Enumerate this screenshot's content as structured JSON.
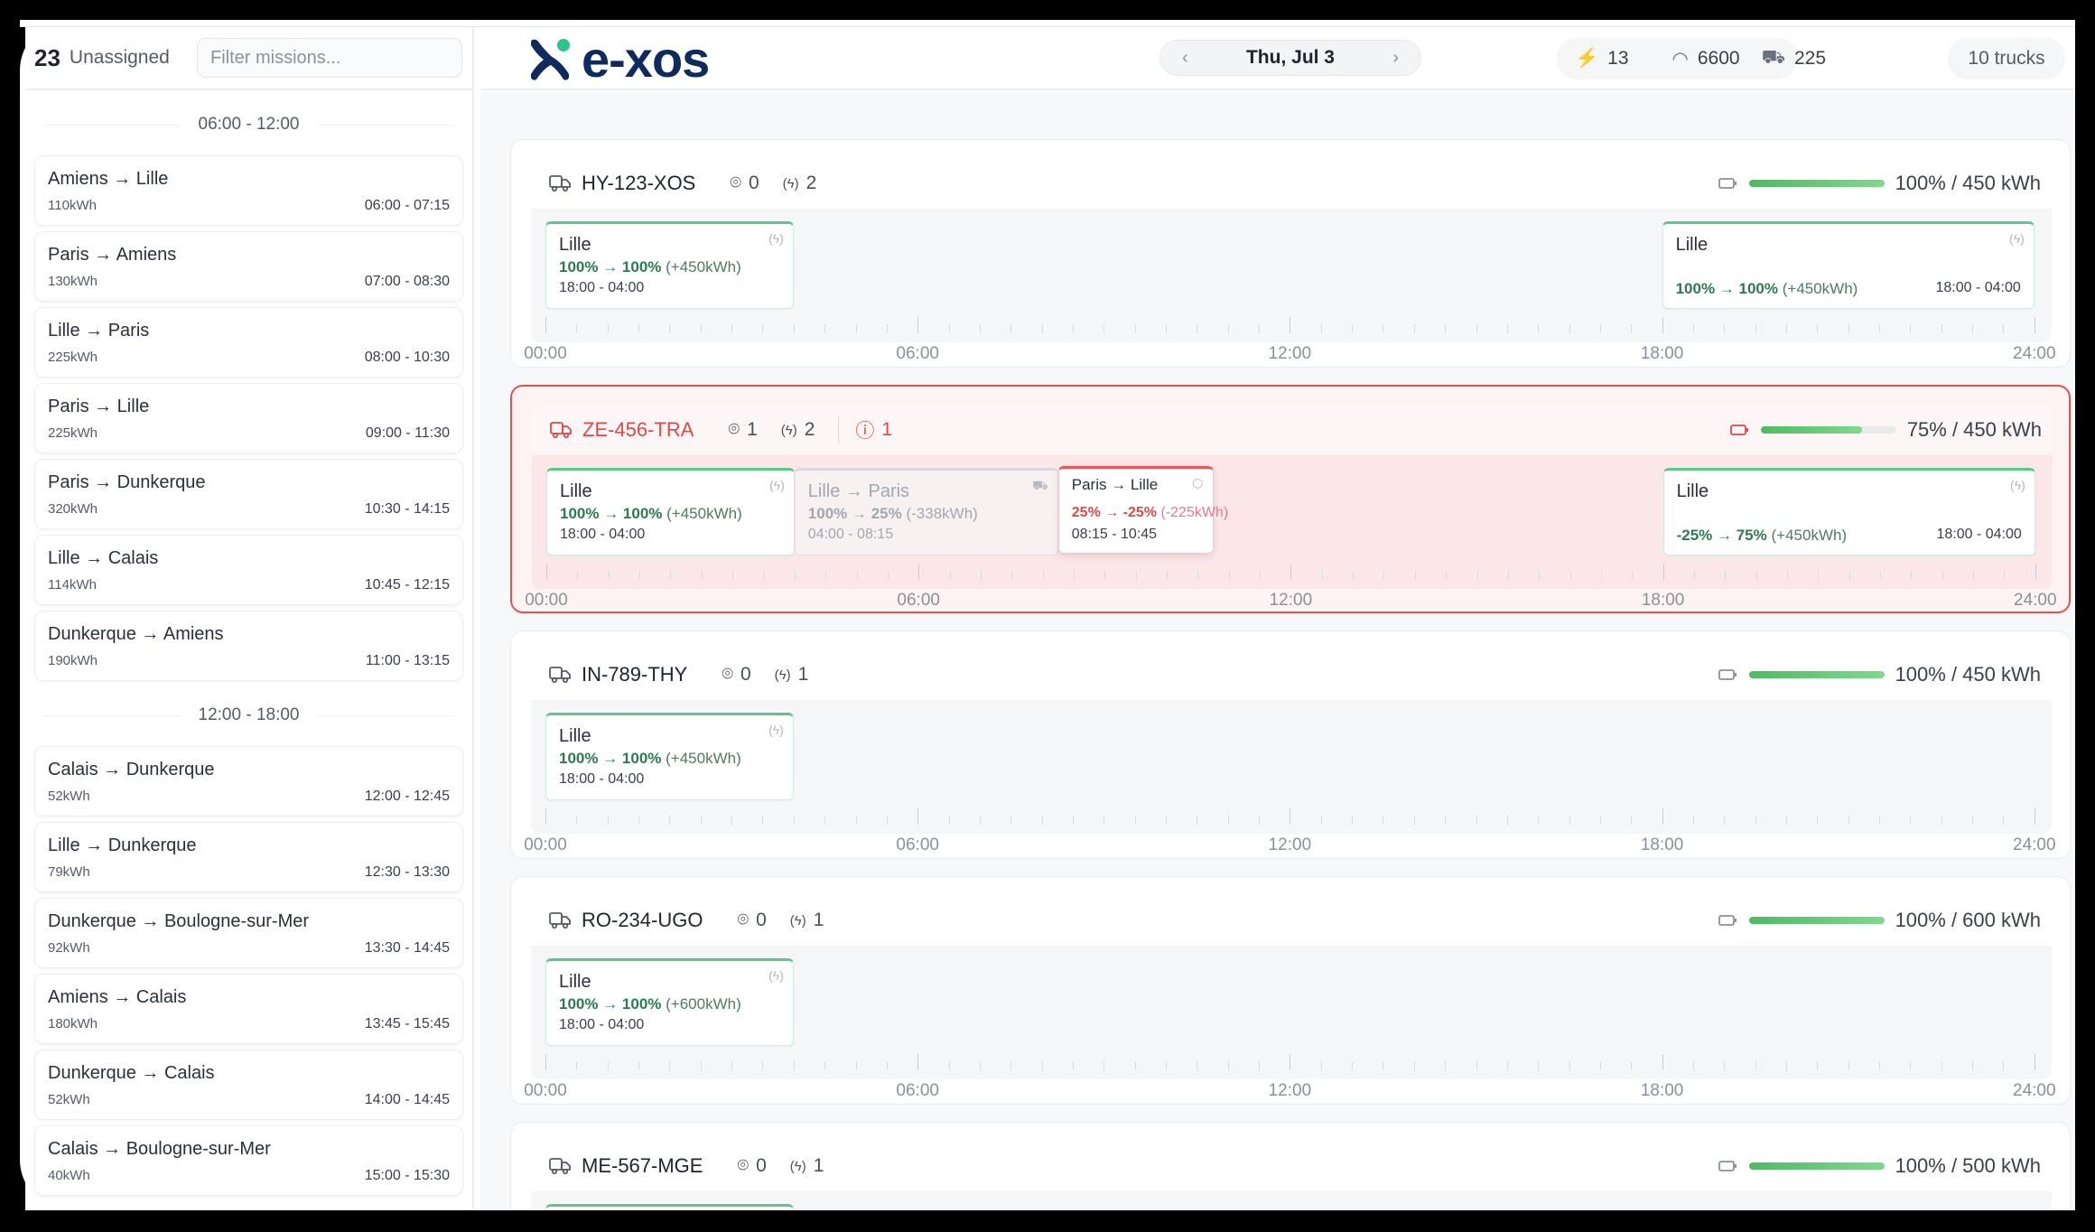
{
  "sidebar": {
    "count": "23",
    "label": "Unassigned",
    "filter_placeholder": "Filter missions...",
    "sections": [
      {
        "title": "06:00 - 12:00",
        "missions": [
          {
            "route": "Amiens → Lille",
            "energy": "110kWh",
            "time": "06:00 - 07:15"
          },
          {
            "route": "Paris → Amiens",
            "energy": "130kWh",
            "time": "07:00 - 08:30"
          },
          {
            "route": "Lille → Paris",
            "energy": "225kWh",
            "time": "08:00 - 10:30"
          },
          {
            "route": "Paris → Lille",
            "energy": "225kWh",
            "time": "09:00 - 11:30"
          },
          {
            "route": "Paris → Dunkerque",
            "energy": "320kWh",
            "time": "10:30 - 14:15"
          },
          {
            "route": "Lille → Calais",
            "energy": "114kWh",
            "time": "10:45 - 12:15"
          },
          {
            "route": "Dunkerque → Amiens",
            "energy": "190kWh",
            "time": "11:00 - 13:15"
          }
        ]
      },
      {
        "title": "12:00 - 18:00",
        "missions": [
          {
            "route": "Calais → Dunkerque",
            "energy": "52kWh",
            "time": "12:00 - 12:45"
          },
          {
            "route": "Lille → Dunkerque",
            "energy": "79kWh",
            "time": "12:30 - 13:30"
          },
          {
            "route": "Dunkerque → Boulogne-sur-Mer",
            "energy": "92kWh",
            "time": "13:30 - 14:45"
          },
          {
            "route": "Amiens → Calais",
            "energy": "180kWh",
            "time": "13:45 - 15:45"
          },
          {
            "route": "Dunkerque → Calais",
            "energy": "52kWh",
            "time": "14:00 - 14:45"
          },
          {
            "route": "Calais → Boulogne-sur-Mer",
            "energy": "40kWh",
            "time": "15:00 - 15:30"
          }
        ]
      }
    ]
  },
  "header": {
    "logo": "e-xos",
    "date": "Thu, Jul 3",
    "prev_icon": "chevron-left-icon",
    "next_icon": "chevron-right-icon",
    "stats": {
      "chargers": "13",
      "distance": "6600",
      "deliveries": "225"
    },
    "trucks": "10 trucks"
  },
  "colors": {
    "brand": "#0f2a5c",
    "brand_dot": "#2cc48a",
    "ok": "#5cc887",
    "alert": "#e04848"
  },
  "timeline": {
    "labels": [
      "00:00",
      "06:00",
      "12:00",
      "18:00",
      "24:00"
    ]
  },
  "trucks": [
    {
      "plate": "HY-123-XOS",
      "stops": "0",
      "charges": "2",
      "battery_pct": 100,
      "battery": "100% / 450 kWh",
      "blocks": [
        {
          "type": "charge",
          "title": "Lille",
          "soc": "100% → 100%",
          "delta": "(+450kWh)",
          "time": "18:00 - 04:00",
          "start": 0,
          "end": 4
        },
        {
          "type": "charge",
          "layout": "bottom",
          "title": "Lille",
          "soc": "100% → 100%",
          "delta": "(+450kWh)",
          "time": "18:00 - 04:00",
          "start": 18,
          "end": 24
        }
      ]
    },
    {
      "plate": "ZE-456-TRA",
      "stops": "1",
      "charges": "2",
      "alerts": "1",
      "battery_pct": 75,
      "battery": "75% / 450 kWh",
      "alert": true,
      "blocks": [
        {
          "type": "charge",
          "title": "Lille",
          "soc": "100% → 100%",
          "delta": "(+450kWh)",
          "time": "18:00 - 04:00",
          "start": 0,
          "end": 4
        },
        {
          "type": "trip-faded",
          "title": "Lille → Paris",
          "soc": "100% → 25%",
          "delta": "(-338kWh)",
          "time": "04:00 - 08:15",
          "start": 4,
          "end": 8.25
        },
        {
          "type": "trip-alert",
          "title": "Paris → Lille",
          "soc": "25% → -25%",
          "delta": "(-225kWh)",
          "time": "08:15 - 10:45",
          "start": 8.25,
          "end": 10.75
        },
        {
          "type": "charge",
          "layout": "bottom",
          "title": "Lille",
          "soc": "-25% → 75%",
          "delta": "(+450kWh)",
          "time": "18:00 - 04:00",
          "start": 18,
          "end": 24
        }
      ]
    },
    {
      "plate": "IN-789-THY",
      "stops": "0",
      "charges": "1",
      "battery_pct": 100,
      "battery": "100% / 450 kWh",
      "blocks": [
        {
          "type": "charge",
          "title": "Lille",
          "soc": "100% → 100%",
          "delta": "(+450kWh)",
          "time": "18:00 - 04:00",
          "start": 0,
          "end": 4
        }
      ]
    },
    {
      "plate": "RO-234-UGO",
      "stops": "0",
      "charges": "1",
      "battery_pct": 100,
      "battery": "100% / 600 kWh",
      "blocks": [
        {
          "type": "charge",
          "title": "Lille",
          "soc": "100% → 100%",
          "delta": "(+600kWh)",
          "time": "18:00 - 04:00",
          "start": 0,
          "end": 4
        }
      ]
    },
    {
      "plate": "ME-567-MGE",
      "stops": "0",
      "charges": "1",
      "battery_pct": 100,
      "battery": "100% / 500 kWh",
      "blocks": [
        {
          "type": "charge",
          "title": "",
          "soc": "",
          "delta": "",
          "time": "",
          "start": 0,
          "end": 4
        }
      ]
    }
  ]
}
